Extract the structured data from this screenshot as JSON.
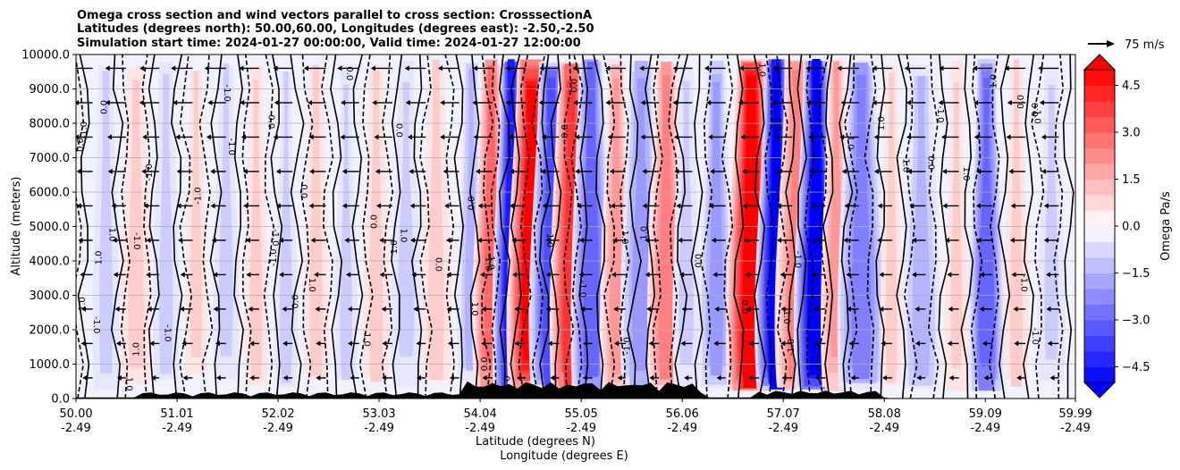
{
  "chart_data": {
    "type": "heatmap",
    "title_lines": [
      "Omega cross section and wind vectors parallel to cross section: CrosssectionA",
      "Latitudes (degrees north): 50.00,60.00, Longitudes (degrees east): -2.50,-2.50",
      "Simulation start time: 2024-01-27 00:00:00, Valid time: 2024-01-27 12:00:00"
    ],
    "xlabel_lines": [
      "Latitude (degrees N)",
      "Longitude (degrees E)"
    ],
    "ylabel": "Altitude (meters)",
    "ylim": [
      0,
      10000
    ],
    "y_ticks": [
      "0.0",
      "1000.0",
      "2000.0",
      "3000.0",
      "4000.0",
      "5000.0",
      "6000.0",
      "7000.0",
      "8000.0",
      "9000.0",
      "10000.0"
    ],
    "x_range": [
      50.0,
      59.99
    ],
    "x_ticks": [
      {
        "lat": "50.00",
        "lon": "-2.49"
      },
      {
        "lat": "51.01",
        "lon": "-2.49"
      },
      {
        "lat": "52.02",
        "lon": "-2.49"
      },
      {
        "lat": "53.03",
        "lon": "-2.49"
      },
      {
        "lat": "54.04",
        "lon": "-2.49"
      },
      {
        "lat": "55.05",
        "lon": "-2.49"
      },
      {
        "lat": "56.06",
        "lon": "-2.49"
      },
      {
        "lat": "57.07",
        "lon": "-2.49"
      },
      {
        "lat": "58.08",
        "lon": "-2.49"
      },
      {
        "lat": "59.09",
        "lon": "-2.49"
      },
      {
        "lat": "59.99",
        "lon": "-2.49"
      }
    ],
    "grid": "horizontal",
    "colorbar": {
      "label": "Omega Pa/s",
      "range": [
        -5.0,
        5.0
      ],
      "ticks": [
        "4.5",
        "3.0",
        "1.5",
        "0.0",
        "−1.5",
        "−3.0",
        "−4.5"
      ],
      "extend": "both",
      "cmap": "bwr"
    },
    "contour_levels": [
      -1.0,
      0.0,
      1.0
    ],
    "contour_labels": [
      "-1.0",
      "0.0",
      "1.0"
    ],
    "vector_key": {
      "value": 75,
      "label": "75 m/s"
    },
    "omega_bands": [
      {
        "lat": 50.3,
        "value": -1.2
      },
      {
        "lat": 50.6,
        "value": 0.6
      },
      {
        "lat": 50.9,
        "value": -0.8
      },
      {
        "lat": 51.2,
        "value": 0.7
      },
      {
        "lat": 51.5,
        "value": -1.0
      },
      {
        "lat": 51.8,
        "value": 0.8
      },
      {
        "lat": 52.1,
        "value": -0.6
      },
      {
        "lat": 52.4,
        "value": 0.9
      },
      {
        "lat": 52.7,
        "value": -0.9
      },
      {
        "lat": 53.0,
        "value": 0.5
      },
      {
        "lat": 53.3,
        "value": -0.7
      },
      {
        "lat": 53.6,
        "value": 0.4
      },
      {
        "lat": 53.95,
        "value": -1.5
      },
      {
        "lat": 54.15,
        "value": 2.8
      },
      {
        "lat": 54.35,
        "value": -4.6
      },
      {
        "lat": 54.55,
        "value": 5.0
      },
      {
        "lat": 54.75,
        "value": -3.5
      },
      {
        "lat": 54.95,
        "value": 3.8
      },
      {
        "lat": 55.15,
        "value": -2.8
      },
      {
        "lat": 55.4,
        "value": 1.8
      },
      {
        "lat": 55.65,
        "value": -2.2
      },
      {
        "lat": 55.9,
        "value": 2.6
      },
      {
        "lat": 56.1,
        "value": -0.5
      },
      {
        "lat": 56.4,
        "value": -1.8
      },
      {
        "lat": 56.75,
        "value": 5.0
      },
      {
        "lat": 57.0,
        "value": -5.0
      },
      {
        "lat": 57.2,
        "value": 2.4
      },
      {
        "lat": 57.4,
        "value": -4.8
      },
      {
        "lat": 57.6,
        "value": 2.0
      },
      {
        "lat": 57.85,
        "value": -2.6
      },
      {
        "lat": 58.15,
        "value": 0.8
      },
      {
        "lat": 58.45,
        "value": -1.4
      },
      {
        "lat": 58.8,
        "value": 0.6
      },
      {
        "lat": 59.1,
        "value": -2.8
      },
      {
        "lat": 59.4,
        "value": 0.4
      },
      {
        "lat": 59.75,
        "value": -1.0
      }
    ]
  }
}
